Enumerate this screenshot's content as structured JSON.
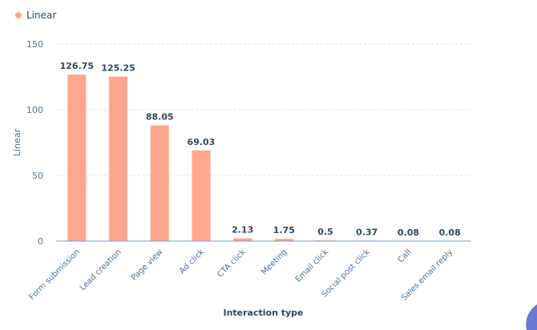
{
  "chart_data": {
    "type": "bar",
    "categories": [
      "Form submission",
      "Lead creation",
      "Page view",
      "Ad click",
      "CTA click",
      "Meeting",
      "Email click",
      "Social post click",
      "Call",
      "Sales email reply"
    ],
    "series": [
      {
        "name": "Linear",
        "values": [
          126.75,
          125.25,
          88.05,
          69.03,
          2.13,
          1.75,
          0.5,
          0.37,
          0.08,
          0.08
        ],
        "color": "#ffa78c"
      }
    ],
    "data_labels": [
      "126.75",
      "125.25",
      "88.05",
      "69.03",
      "2.13",
      "1.75",
      "0.5",
      "0.37",
      "0.08",
      "0.08"
    ],
    "xlabel": "Interaction type",
    "ylabel": "Linear",
    "ylim": [
      0,
      150
    ],
    "yticks": [
      0,
      50,
      100,
      150
    ],
    "grid": true,
    "legend_position": "top-left"
  }
}
